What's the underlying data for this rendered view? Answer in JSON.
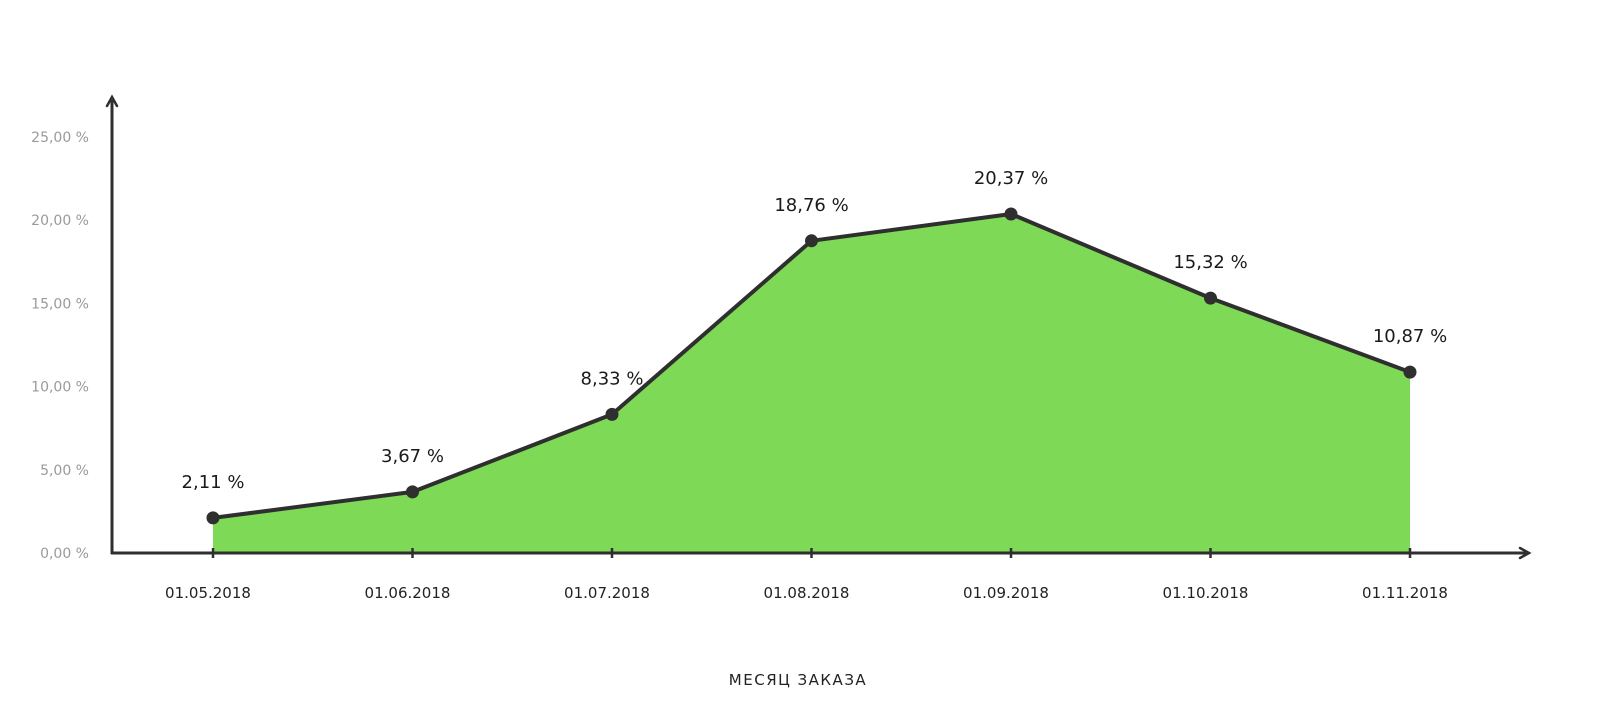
{
  "chart_data": {
    "type": "area",
    "categories": [
      "01.05.2018",
      "01.06.2018",
      "01.07.2018",
      "01.08.2018",
      "01.09.2018",
      "01.10.2018",
      "01.11.2018"
    ],
    "values": [
      2.11,
      3.67,
      8.33,
      18.76,
      20.37,
      15.32,
      10.87
    ],
    "data_labels": [
      "2,11 %",
      "3,67 %",
      "8,33 %",
      "18,76 %",
      "20,37 %",
      "15,32 %",
      "10,87 %"
    ],
    "title": "",
    "xlabel": "МЕСЯЦ ЗАКАЗА",
    "ylabel": "",
    "ylim": [
      0,
      25
    ],
    "yticks": [
      0,
      5,
      10,
      15,
      20,
      25
    ],
    "ytick_labels": [
      "0,00 %",
      "5,00 %",
      "10,00 %",
      "15,00 %",
      "20,00 %",
      "25,00 %"
    ],
    "grid": false,
    "legend": "none",
    "colors": {
      "fill": "#7ed957",
      "line": "#2f2f2f",
      "marker": "#2f2f2f",
      "axis": "#2f2f2f"
    }
  }
}
